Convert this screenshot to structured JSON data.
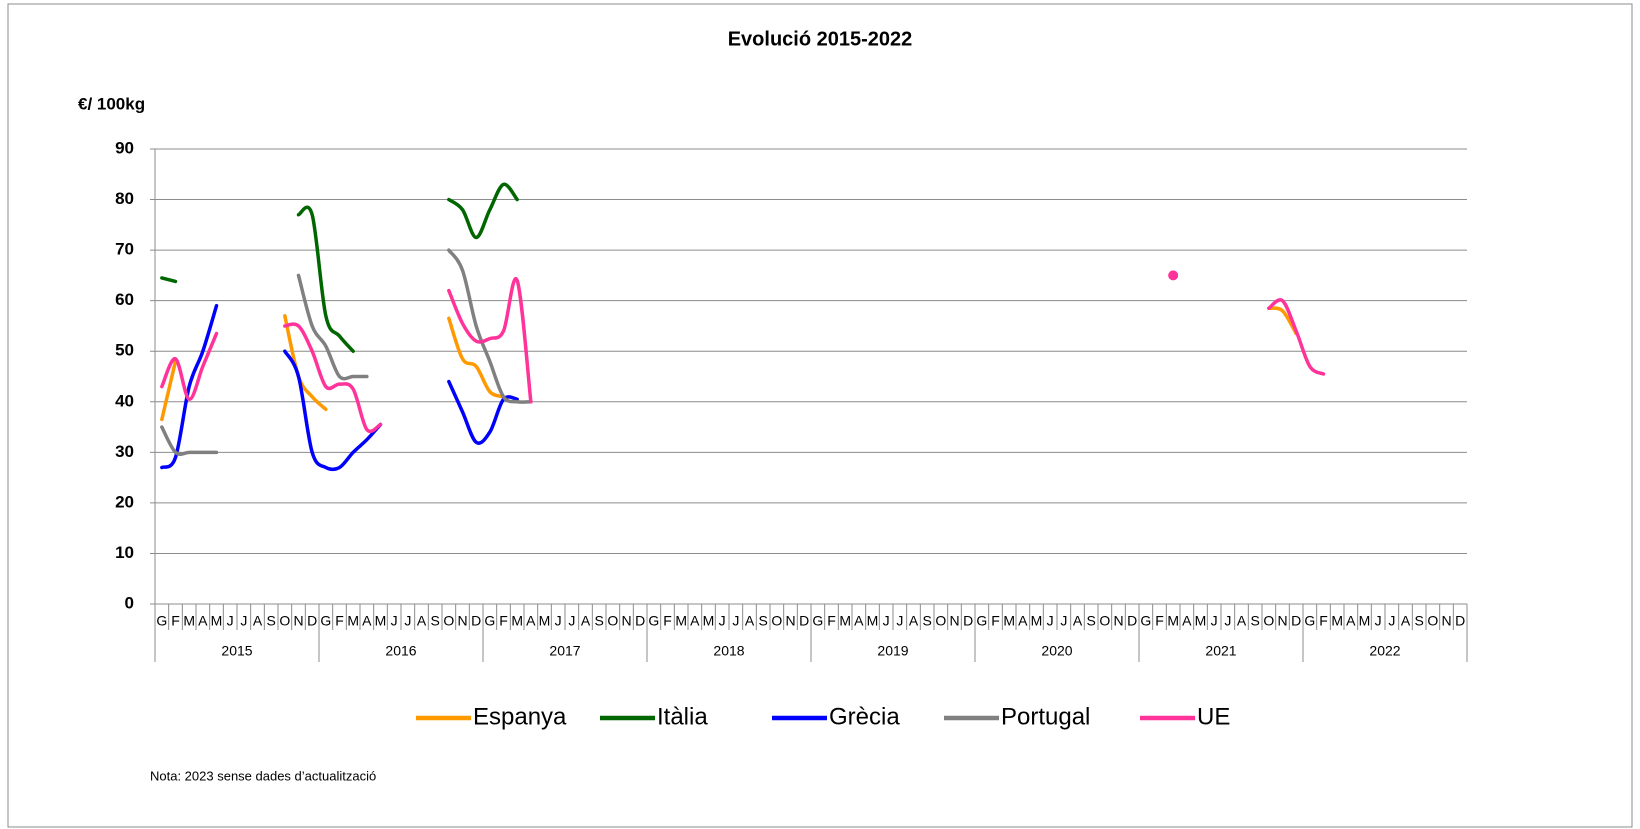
{
  "chart_data": {
    "type": "line",
    "title": "Evolució 2015-2022",
    "y_label": "€/ 100kg",
    "note": "Nota: 2023 sense dades d’actualització",
    "categories": [
      "G",
      "F",
      "M",
      "A",
      "M",
      "J",
      "J",
      "A",
      "S",
      "O",
      "N",
      "D",
      "G",
      "F",
      "M",
      "A",
      "M",
      "J",
      "J",
      "A",
      "S",
      "O",
      "N",
      "D",
      "G",
      "F",
      "M",
      "A",
      "M",
      "J",
      "J",
      "A",
      "S",
      "O",
      "N",
      "D",
      "G",
      "F",
      "M",
      "A",
      "M",
      "J",
      "J",
      "A",
      "S",
      "O",
      "N",
      "D",
      "G",
      "F",
      "M",
      "A",
      "M",
      "J",
      "J",
      "A",
      "S",
      "O",
      "N",
      "D",
      "G",
      "F",
      "M",
      "A",
      "M",
      "J",
      "J",
      "A",
      "S",
      "O",
      "N",
      "D",
      "G",
      "F",
      "M",
      "A",
      "M",
      "J",
      "J",
      "A",
      "S",
      "O",
      "N",
      "D",
      "G",
      "F",
      "M",
      "A",
      "M",
      "J",
      "J",
      "A",
      "S",
      "O",
      "N",
      "D"
    ],
    "groups": [
      "2015",
      "2016",
      "2017",
      "2018",
      "2019",
      "2020",
      "2021",
      "2022"
    ],
    "ylim": [
      0,
      90
    ],
    "yticks": [
      0,
      10,
      20,
      30,
      40,
      50,
      60,
      70,
      80,
      90
    ],
    "grid": true,
    "legend": "bottom",
    "series": [
      {
        "name": "Espanya",
        "color": "#ff9900",
        "values": [
          36.5,
          48,
          null,
          null,
          null,
          null,
          null,
          null,
          null,
          57,
          45,
          41,
          38.5,
          null,
          null,
          null,
          null,
          null,
          null,
          null,
          null,
          56.5,
          48.5,
          47,
          42,
          41,
          null,
          null,
          null,
          null,
          null,
          null,
          null,
          null,
          null,
          null,
          null,
          null,
          null,
          null,
          null,
          null,
          null,
          null,
          null,
          null,
          null,
          null,
          null,
          null,
          null,
          null,
          null,
          null,
          null,
          null,
          null,
          null,
          null,
          null,
          null,
          null,
          null,
          null,
          null,
          null,
          null,
          null,
          null,
          null,
          null,
          null,
          null,
          null,
          null,
          null,
          null,
          null,
          null,
          null,
          null,
          58.5,
          58,
          53.5,
          null,
          null,
          null,
          null,
          null,
          null,
          null,
          null,
          null,
          null,
          null,
          null
        ]
      },
      {
        "name": "Itàlia",
        "color": "#006600",
        "values": [
          64.5,
          63.8,
          null,
          null,
          null,
          null,
          null,
          null,
          null,
          null,
          77,
          77,
          57,
          53,
          50,
          null,
          null,
          null,
          null,
          null,
          null,
          80,
          78,
          72.5,
          78,
          83,
          80,
          null,
          null,
          null,
          null,
          null,
          null,
          null,
          null,
          null,
          null,
          null,
          null,
          null,
          null,
          null,
          null,
          null,
          null,
          null,
          null,
          null,
          null,
          null,
          null,
          null,
          null,
          null,
          null,
          null,
          null,
          null,
          null,
          null,
          null,
          null,
          null,
          null,
          null,
          null,
          null,
          null,
          null,
          null,
          null,
          null,
          null,
          null,
          null,
          null,
          null,
          null,
          null,
          null,
          null,
          null,
          null,
          null,
          null,
          null,
          null,
          null,
          null,
          null,
          null,
          null,
          null,
          null,
          null,
          null
        ]
      },
      {
        "name": "Grècia",
        "color": "#0000ff",
        "values": [
          27,
          29,
          43,
          50,
          59,
          null,
          null,
          null,
          null,
          50,
          45,
          30,
          27,
          27,
          30,
          32.5,
          35.5,
          null,
          null,
          null,
          null,
          44,
          38,
          32,
          34,
          40.5,
          40.5,
          null,
          null,
          null,
          null,
          null,
          null,
          null,
          null,
          null,
          null,
          null,
          null,
          null,
          null,
          null,
          null,
          null,
          null,
          null,
          null,
          null,
          null,
          null,
          null,
          null,
          null,
          null,
          null,
          null,
          null,
          null,
          null,
          null,
          null,
          null,
          null,
          null,
          null,
          null,
          null,
          null,
          null,
          null,
          null,
          null,
          null,
          null,
          null,
          null,
          null,
          null,
          null,
          null,
          null,
          null,
          null,
          null,
          null,
          null,
          null,
          null,
          null,
          null,
          null,
          null,
          null,
          null,
          null,
          null
        ]
      },
      {
        "name": "Portugal",
        "color": "#808080",
        "values": [
          35,
          30,
          30,
          30,
          30,
          null,
          null,
          null,
          null,
          null,
          65,
          55,
          51,
          45,
          45,
          45,
          null,
          null,
          null,
          null,
          null,
          70,
          66,
          55,
          48,
          41,
          40,
          40,
          null,
          null,
          null,
          null,
          null,
          null,
          null,
          null,
          null,
          null,
          null,
          null,
          null,
          null,
          null,
          null,
          null,
          null,
          null,
          null,
          null,
          null,
          null,
          null,
          null,
          null,
          null,
          null,
          null,
          null,
          null,
          null,
          null,
          null,
          null,
          null,
          null,
          null,
          null,
          null,
          null,
          null,
          null,
          null,
          null,
          null,
          null,
          null,
          null,
          null,
          null,
          null,
          null,
          null,
          null,
          null,
          null,
          null,
          null,
          null,
          null,
          null,
          null,
          null,
          null,
          null,
          null,
          null
        ]
      },
      {
        "name": "UE",
        "color": "#ff3399",
        "values": [
          43,
          48.5,
          40.5,
          47,
          53.5,
          null,
          null,
          null,
          null,
          55,
          55,
          50,
          43,
          43.5,
          42.5,
          34.5,
          35.5,
          null,
          null,
          null,
          null,
          62,
          55.5,
          52,
          52.5,
          54,
          64,
          40,
          null,
          null,
          null,
          null,
          null,
          null,
          null,
          null,
          null,
          null,
          null,
          null,
          null,
          null,
          null,
          null,
          null,
          null,
          null,
          null,
          null,
          null,
          null,
          null,
          null,
          null,
          null,
          null,
          null,
          null,
          null,
          null,
          null,
          null,
          null,
          null,
          null,
          null,
          null,
          null,
          null,
          null,
          null,
          null,
          null,
          null,
          65,
          null,
          null,
          null,
          null,
          null,
          null,
          58.5,
          60,
          54,
          47,
          45.5,
          null,
          null,
          null,
          null,
          null,
          null,
          null,
          null,
          null,
          null
        ]
      }
    ]
  }
}
